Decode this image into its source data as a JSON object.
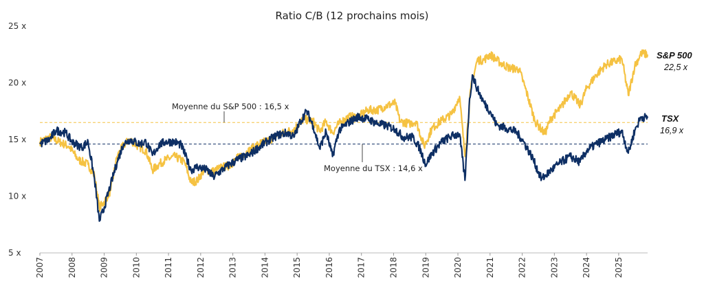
{
  "chart_data": {
    "type": "line",
    "title": "Ratio C/B (12 prochains mois)",
    "xlabel": "",
    "ylabel": "",
    "xlim": [
      2007,
      2025.9
    ],
    "ylim": [
      5,
      25
    ],
    "y_ticks": [
      {
        "value": 5,
        "label": "5 x"
      },
      {
        "value": 10,
        "label": "10 x"
      },
      {
        "value": 15,
        "label": "15 x"
      },
      {
        "value": 20,
        "label": "20 x"
      },
      {
        "value": 25,
        "label": "25 x"
      }
    ],
    "x_ticks": [
      {
        "value": 2007,
        "label": "2007"
      },
      {
        "value": 2008,
        "label": "2008"
      },
      {
        "value": 2009,
        "label": "2009"
      },
      {
        "value": 2010,
        "label": "2010"
      },
      {
        "value": 2011,
        "label": "2011"
      },
      {
        "value": 2012,
        "label": "2012"
      },
      {
        "value": 2013,
        "label": "2013"
      },
      {
        "value": 2014,
        "label": "2014"
      },
      {
        "value": 2015,
        "label": "2015"
      },
      {
        "value": 2016,
        "label": "2016"
      },
      {
        "value": 2017,
        "label": "2017"
      },
      {
        "value": 2018,
        "label": "2018"
      },
      {
        "value": 2019,
        "label": "2019"
      },
      {
        "value": 2020,
        "label": "2020"
      },
      {
        "value": 2021,
        "label": "2021"
      },
      {
        "value": 2022,
        "label": "2022"
      },
      {
        "value": 2023,
        "label": "2023"
      },
      {
        "value": 2024,
        "label": "2024"
      },
      {
        "value": 2025,
        "label": "2025"
      }
    ],
    "grid": false,
    "series": [
      {
        "name": "S&P 500",
        "end_label": "22,5 x",
        "color": "#F5C242",
        "points": [
          [
            2007.0,
            14.8
          ],
          [
            2007.3,
            15.2
          ],
          [
            2007.6,
            14.8
          ],
          [
            2007.9,
            14.4
          ],
          [
            2008.2,
            13.2
          ],
          [
            2008.5,
            12.8
          ],
          [
            2008.7,
            11.8
          ],
          [
            2008.85,
            9.0
          ],
          [
            2009.0,
            9.5
          ],
          [
            2009.2,
            10.5
          ],
          [
            2009.4,
            13.5
          ],
          [
            2009.6,
            14.5
          ],
          [
            2009.8,
            15.0
          ],
          [
            2010.0,
            14.5
          ],
          [
            2010.3,
            14.0
          ],
          [
            2010.5,
            12.3
          ],
          [
            2010.7,
            12.8
          ],
          [
            2010.9,
            13.2
          ],
          [
            2011.2,
            13.5
          ],
          [
            2011.5,
            13.0
          ],
          [
            2011.7,
            11.2
          ],
          [
            2011.9,
            11.4
          ],
          [
            2012.1,
            12.3
          ],
          [
            2012.4,
            12.2
          ],
          [
            2012.6,
            12.5
          ],
          [
            2012.9,
            12.7
          ],
          [
            2013.2,
            13.5
          ],
          [
            2013.5,
            14.0
          ],
          [
            2013.8,
            14.6
          ],
          [
            2014.1,
            14.9
          ],
          [
            2014.4,
            15.4
          ],
          [
            2014.7,
            15.7
          ],
          [
            2014.9,
            15.9
          ],
          [
            2015.2,
            16.8
          ],
          [
            2015.5,
            16.6
          ],
          [
            2015.7,
            15.7
          ],
          [
            2015.9,
            16.6
          ],
          [
            2016.1,
            15.6
          ],
          [
            2016.3,
            16.4
          ],
          [
            2016.6,
            17.0
          ],
          [
            2016.9,
            17.0
          ],
          [
            2017.2,
            17.6
          ],
          [
            2017.5,
            17.6
          ],
          [
            2017.8,
            18.0
          ],
          [
            2018.05,
            18.2
          ],
          [
            2018.2,
            16.6
          ],
          [
            2018.5,
            16.4
          ],
          [
            2018.7,
            16.6
          ],
          [
            2018.95,
            14.4
          ],
          [
            2019.2,
            16.0
          ],
          [
            2019.5,
            16.7
          ],
          [
            2019.8,
            17.2
          ],
          [
            2020.05,
            18.8
          ],
          [
            2020.22,
            13.5
          ],
          [
            2020.4,
            19.5
          ],
          [
            2020.6,
            22.0
          ],
          [
            2020.8,
            22.0
          ],
          [
            2021.0,
            22.5
          ],
          [
            2021.3,
            21.8
          ],
          [
            2021.6,
            21.3
          ],
          [
            2021.9,
            21.2
          ],
          [
            2022.1,
            19.5
          ],
          [
            2022.4,
            16.6
          ],
          [
            2022.7,
            15.5
          ],
          [
            2022.9,
            16.9
          ],
          [
            2023.2,
            17.8
          ],
          [
            2023.5,
            19.2
          ],
          [
            2023.8,
            18.0
          ],
          [
            2024.0,
            19.5
          ],
          [
            2024.3,
            20.7
          ],
          [
            2024.6,
            21.6
          ],
          [
            2024.9,
            21.9
          ],
          [
            2025.1,
            22.1
          ],
          [
            2025.3,
            18.9
          ],
          [
            2025.5,
            21.5
          ],
          [
            2025.7,
            22.6
          ],
          [
            2025.9,
            22.5
          ]
        ]
      },
      {
        "name": "TSX",
        "end_label": "16,9 x",
        "color": "#0E2F64",
        "points": [
          [
            2007.0,
            14.6
          ],
          [
            2007.3,
            15.0
          ],
          [
            2007.5,
            15.8
          ],
          [
            2007.8,
            15.6
          ],
          [
            2008.0,
            14.8
          ],
          [
            2008.3,
            14.3
          ],
          [
            2008.5,
            14.8
          ],
          [
            2008.7,
            11.5
          ],
          [
            2008.85,
            7.8
          ],
          [
            2009.0,
            9.0
          ],
          [
            2009.2,
            11.0
          ],
          [
            2009.4,
            13.0
          ],
          [
            2009.6,
            14.6
          ],
          [
            2009.8,
            15.0
          ],
          [
            2010.1,
            14.6
          ],
          [
            2010.3,
            14.8
          ],
          [
            2010.5,
            13.6
          ],
          [
            2010.7,
            14.5
          ],
          [
            2010.9,
            14.8
          ],
          [
            2011.2,
            14.8
          ],
          [
            2011.4,
            14.5
          ],
          [
            2011.7,
            12.3
          ],
          [
            2011.9,
            12.6
          ],
          [
            2012.2,
            12.3
          ],
          [
            2012.4,
            11.7
          ],
          [
            2012.7,
            12.4
          ],
          [
            2012.9,
            12.8
          ],
          [
            2013.2,
            13.3
          ],
          [
            2013.5,
            13.6
          ],
          [
            2013.8,
            14.3
          ],
          [
            2014.1,
            14.9
          ],
          [
            2014.4,
            15.4
          ],
          [
            2014.7,
            15.6
          ],
          [
            2014.9,
            15.2
          ],
          [
            2015.1,
            16.6
          ],
          [
            2015.3,
            17.5
          ],
          [
            2015.5,
            16.2
          ],
          [
            2015.7,
            14.2
          ],
          [
            2015.9,
            15.7
          ],
          [
            2016.1,
            13.5
          ],
          [
            2016.3,
            15.8
          ],
          [
            2016.6,
            16.5
          ],
          [
            2016.9,
            17.0
          ],
          [
            2017.2,
            16.8
          ],
          [
            2017.5,
            16.4
          ],
          [
            2017.8,
            16.2
          ],
          [
            2018.05,
            15.9
          ],
          [
            2018.3,
            15.2
          ],
          [
            2018.6,
            15.2
          ],
          [
            2018.8,
            14.3
          ],
          [
            2019.0,
            12.8
          ],
          [
            2019.2,
            13.8
          ],
          [
            2019.5,
            14.8
          ],
          [
            2019.8,
            15.3
          ],
          [
            2020.05,
            15.5
          ],
          [
            2020.22,
            11.4
          ],
          [
            2020.35,
            18.0
          ],
          [
            2020.45,
            20.7
          ],
          [
            2020.6,
            19.5
          ],
          [
            2020.8,
            18.3
          ],
          [
            2021.0,
            17.5
          ],
          [
            2021.2,
            16.3
          ],
          [
            2021.5,
            16.0
          ],
          [
            2021.8,
            15.7
          ],
          [
            2022.0,
            15.0
          ],
          [
            2022.3,
            13.5
          ],
          [
            2022.6,
            11.5
          ],
          [
            2022.9,
            12.3
          ],
          [
            2023.2,
            13.0
          ],
          [
            2023.5,
            13.5
          ],
          [
            2023.8,
            13.0
          ],
          [
            2024.0,
            14.0
          ],
          [
            2024.3,
            14.6
          ],
          [
            2024.6,
            15.0
          ],
          [
            2024.9,
            15.5
          ],
          [
            2025.1,
            15.7
          ],
          [
            2025.3,
            13.8
          ],
          [
            2025.5,
            15.8
          ],
          [
            2025.7,
            17.0
          ],
          [
            2025.9,
            16.9
          ]
        ]
      }
    ],
    "reference_lines": [
      {
        "label": "Moyenne du S&P 500 : 16,5 x",
        "value": 16.5,
        "color": "#F5C242"
      },
      {
        "label": "Moyenne du TSX : 14,6 x",
        "value": 14.6,
        "color": "#0E2F64"
      }
    ],
    "legend": "end-of-line labels at right"
  }
}
